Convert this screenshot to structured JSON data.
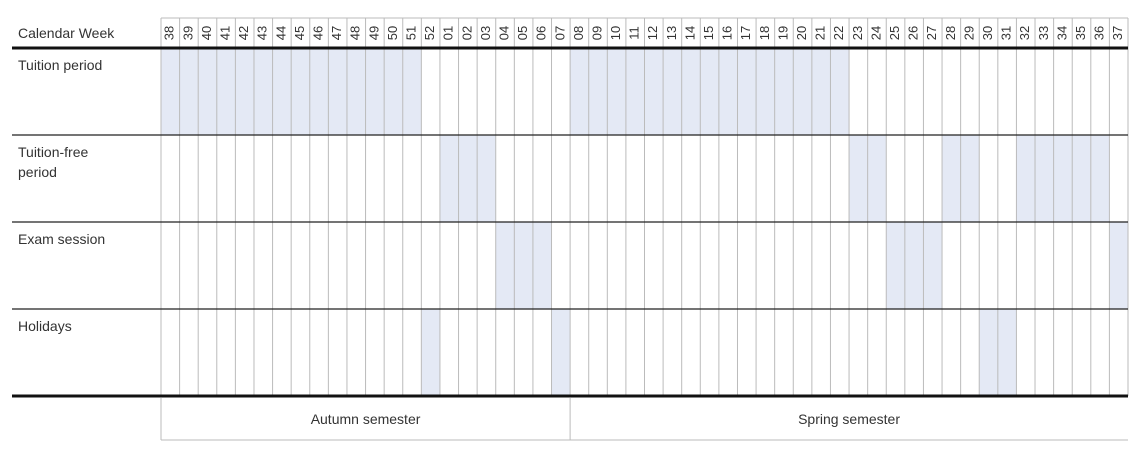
{
  "header": {
    "title": "Calendar Week"
  },
  "weeks": [
    "38",
    "39",
    "40",
    "41",
    "42",
    "43",
    "44",
    "45",
    "46",
    "47",
    "48",
    "49",
    "50",
    "51",
    "52",
    "01",
    "02",
    "03",
    "04",
    "05",
    "06",
    "07",
    "08",
    "09",
    "10",
    "11",
    "12",
    "13",
    "14",
    "15",
    "16",
    "17",
    "18",
    "19",
    "20",
    "21",
    "22",
    "23",
    "24",
    "25",
    "26",
    "27",
    "28",
    "29",
    "30",
    "31",
    "32",
    "33",
    "34",
    "35",
    "36",
    "37"
  ],
  "rows": [
    {
      "label": "Tuition period",
      "weeks": [
        "38",
        "39",
        "40",
        "41",
        "42",
        "43",
        "44",
        "45",
        "46",
        "47",
        "48",
        "49",
        "50",
        "51",
        "08",
        "09",
        "10",
        "11",
        "12",
        "13",
        "14",
        "15",
        "16",
        "17",
        "18",
        "19",
        "20",
        "21",
        "22"
      ]
    },
    {
      "label": "Tuition-free period",
      "weeks": [
        "01",
        "02",
        "03",
        "23",
        "24",
        "28",
        "29",
        "32",
        "33",
        "34",
        "35",
        "36"
      ]
    },
    {
      "label": "Exam session",
      "weeks": [
        "04",
        "05",
        "06",
        "25",
        "26",
        "27",
        "37"
      ]
    },
    {
      "label": "Holidays",
      "weeks": [
        "52",
        "07",
        "30",
        "31"
      ]
    }
  ],
  "semesters": [
    {
      "label": "Autumn semester",
      "from": "38",
      "to": "07"
    },
    {
      "label": "Spring semester",
      "from": "08",
      "to": "37"
    }
  ]
}
